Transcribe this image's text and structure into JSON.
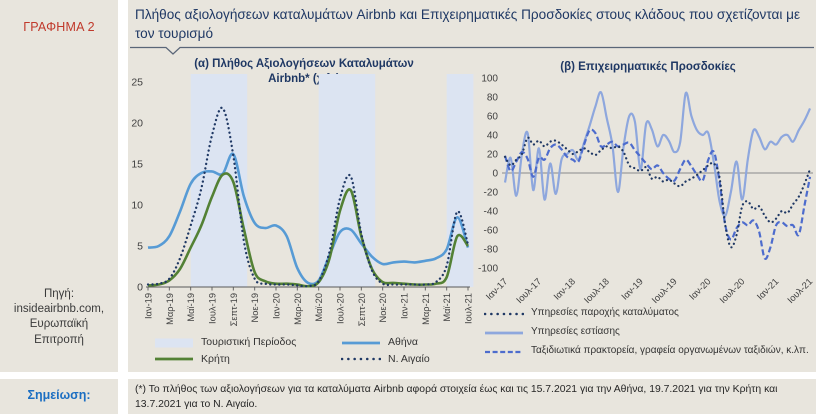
{
  "figure_label": "ΓΡΑΦΗΜΑ 2",
  "title": "Πλήθος αξιολογήσεων καταλυμάτων Airbnb και Επιχειρηματικές Προσδοκίες στους κλάδους που σχετίζονται με τον τουρισμό",
  "source": {
    "lines": [
      "Πηγή:",
      "insideairbnb.com,",
      "Ευρωπαϊκή",
      "Επιτροπή"
    ]
  },
  "note": {
    "label": "Σημείωση:",
    "text": "(*) Το πλήθος των αξιολογήσεων για τα καταλύματα Airbnb αφορά στοιχεία έως και τις 15.7.2021 για την Αθήνα, 19.7.2021 για την Κρήτη και 13.7.2021 για το Ν. Αιγαίο."
  },
  "colors": {
    "panel_bg": "#e8e5dd",
    "figure_label_red": "#c0392b",
    "title_navy": "#1f3864",
    "note_blue": "#1b6ec2",
    "axis_text": "#3f3f3f",
    "zero_line_gray": "#9c9c9c",
    "tourism_band": "#dce4f2"
  },
  "chart_data": [
    {
      "type": "line",
      "title": "(α) Πλήθος Αξιολογήσεων Καταλυμάτων Airbnb* (χιλ.)",
      "xlabel": "",
      "ylabel": "",
      "ylim": [
        0,
        25
      ],
      "yticks": [
        0,
        5,
        10,
        15,
        20,
        25
      ],
      "n_points": 31,
      "x_tick_labels": [
        "Ιαν-19",
        "Μαρ-19",
        "Μαϊ-19",
        "Ιουλ-19",
        "Σεπτ-19",
        "Νοε-19",
        "Ιαν-20",
        "Μαρ-20",
        "Μαϊ-20",
        "Ιουλ-20",
        "Σεπτ-20",
        "Νοε-20",
        "Ιαν-21",
        "Μαρ-21",
        "Μαϊ-21",
        "Ιουλ-21"
      ],
      "x_tick_indices": [
        0,
        2,
        4,
        6,
        8,
        10,
        12,
        14,
        16,
        18,
        20,
        22,
        24,
        26,
        28,
        30
      ],
      "grid": false,
      "legend_position": "bottom",
      "tourism_period": {
        "label": "Τουριστική Περίοδος",
        "color": "#dce4f2",
        "month_ranges": [
          [
            4,
            9.3
          ],
          [
            16,
            21.3
          ],
          [
            28,
            30.5
          ]
        ]
      },
      "series": [
        {
          "name": "Αθήνα",
          "style": "solid",
          "color": "#579bd5",
          "values": [
            4.8,
            5.0,
            6.2,
            9.2,
            12.6,
            13.9,
            14.1,
            13.8,
            16.2,
            11.0,
            7.8,
            7.2,
            7.5,
            6.2,
            2.3,
            0.5,
            0.8,
            3.8,
            6.7,
            7.0,
            5.3,
            3.7,
            2.8,
            3.0,
            3.1,
            3.0,
            3.2,
            3.5,
            4.6,
            8.5,
            4.8
          ]
        },
        {
          "name": "Κρήτη",
          "style": "solid",
          "color": "#538135",
          "values": [
            0.2,
            0.3,
            0.8,
            2.2,
            4.8,
            7.5,
            11.0,
            13.7,
            12.8,
            7.0,
            1.8,
            0.7,
            0.4,
            0.4,
            0.3,
            0.1,
            0.6,
            3.4,
            9.3,
            11.8,
            6.2,
            2.2,
            0.6,
            0.5,
            0.4,
            0.3,
            0.3,
            0.4,
            1.2,
            6.2,
            5.0
          ]
        },
        {
          "name": "Ν. Αιγαίο",
          "style": "dotted",
          "color": "#1f3864",
          "values": [
            0.3,
            0.4,
            1.0,
            3.5,
            7.5,
            12.0,
            18.5,
            21.8,
            16.0,
            5.5,
            1.0,
            0.4,
            0.3,
            0.3,
            0.2,
            0.1,
            0.7,
            4.2,
            10.8,
            13.5,
            6.5,
            2.0,
            0.4,
            0.3,
            0.3,
            0.3,
            0.3,
            0.6,
            2.6,
            9.2,
            5.2
          ]
        }
      ]
    },
    {
      "type": "line",
      "title": "(β) Επιχειρηματικές Προσδοκίες",
      "xlabel": "",
      "ylabel": "",
      "ylim": [
        -100,
        100
      ],
      "yticks": [
        100,
        80,
        60,
        40,
        20,
        0,
        -20,
        -40,
        -60,
        -80,
        -100
      ],
      "n_points": 55,
      "x_tick_labels": [
        "Ιαν-17",
        "Ιουλ-17",
        "Ιαν-18",
        "Ιουλ-18",
        "Ιαν-19",
        "Ιουλ-19",
        "Ιαν-20",
        "Ιουλ-20",
        "Ιαν-21",
        "Ιουλ-21"
      ],
      "x_tick_indices": [
        0,
        6,
        12,
        18,
        24,
        30,
        36,
        42,
        48,
        54
      ],
      "grid": false,
      "zero_line": true,
      "legend_position": "bottom",
      "series": [
        {
          "name": "Υπηρεσίες παροχής καταλύματος",
          "style": "dotted",
          "color": "#1f3864",
          "values": [
            17,
            8,
            14,
            20,
            37,
            30,
            34,
            28,
            33,
            34,
            30,
            25,
            20,
            23,
            26,
            22,
            19,
            24,
            28,
            26,
            28,
            22,
            8,
            5,
            2,
            6,
            -6,
            -4,
            -9,
            -7,
            -11,
            -14,
            -9,
            -6,
            -2,
            3,
            8,
            10,
            -5,
            -55,
            -78,
            -65,
            -35,
            -30,
            -38,
            -35,
            -45,
            -52,
            -48,
            -40,
            -42,
            -33,
            -25,
            -12,
            4
          ]
        },
        {
          "name": "Υπηρεσίες εστίασης",
          "style": "solid",
          "color": "#8ea7dd",
          "values": [
            -10,
            16,
            -24,
            20,
            42,
            -18,
            26,
            -28,
            10,
            -22,
            14,
            20,
            24,
            14,
            32,
            50,
            70,
            85,
            58,
            30,
            -20,
            28,
            60,
            54,
            4,
            52,
            46,
            28,
            40,
            34,
            22,
            32,
            84,
            60,
            45,
            40,
            42,
            10,
            -30,
            -45,
            -20,
            12,
            -28,
            15,
            45,
            38,
            25,
            33,
            30,
            38,
            40,
            33,
            45,
            55,
            68
          ]
        },
        {
          "name": "Ταξιδιωτικά πρακτορεία, γραφεία οργανωμένων ταξιδιών, κ.λπ.",
          "style": "dashed",
          "color": "#4d6ccd",
          "values": [
            18,
            2,
            12,
            22,
            15,
            -4,
            16,
            14,
            26,
            30,
            25,
            17,
            14,
            12,
            30,
            45,
            42,
            28,
            30,
            33,
            28,
            30,
            32,
            24,
            17,
            10,
            4,
            8,
            0,
            -6,
            -8,
            4,
            14,
            7,
            -2,
            -8,
            14,
            22,
            -10,
            -55,
            -70,
            -58,
            -52,
            -55,
            -50,
            -62,
            -90,
            -78,
            -55,
            -52,
            -56,
            -55,
            -65,
            -35,
            -4
          ]
        }
      ]
    }
  ]
}
